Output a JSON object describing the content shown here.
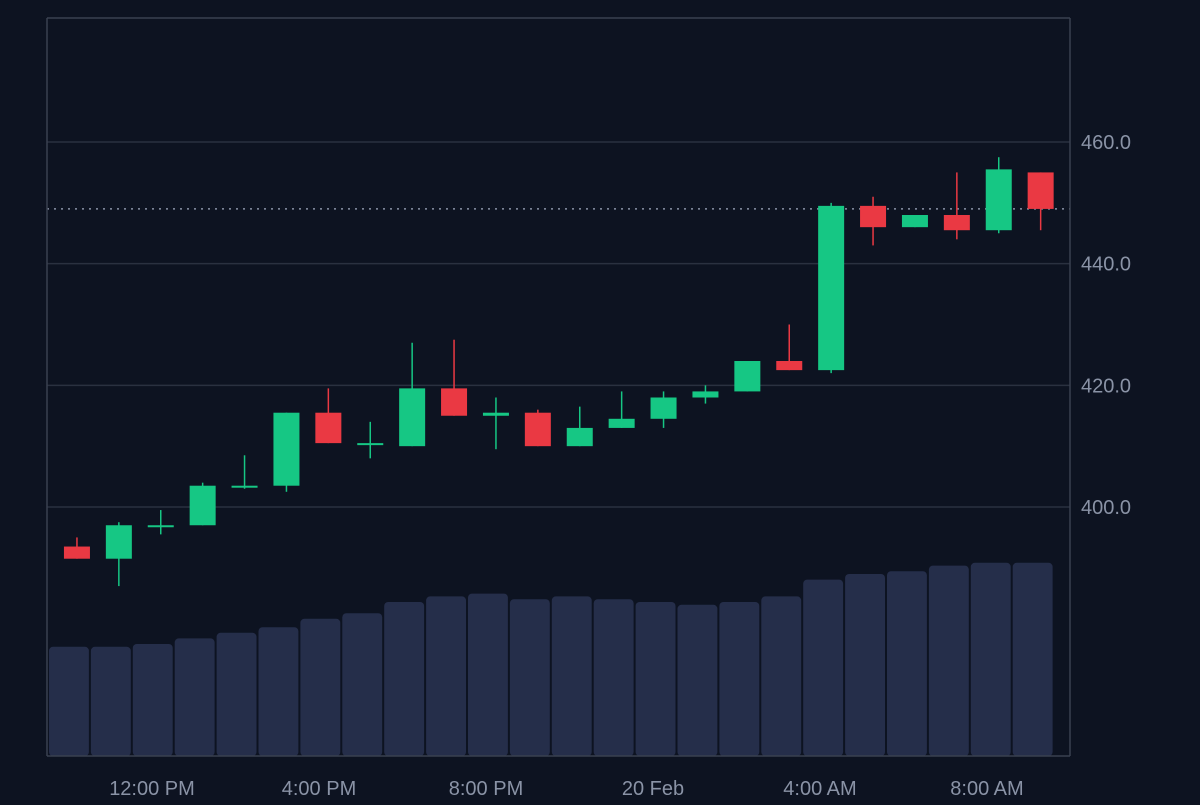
{
  "chart_data": {
    "type": "candlestick",
    "title": "",
    "xlabel": "",
    "ylabel": "",
    "y_axis": {
      "side": "right",
      "ticks": [
        "400.0",
        "420.0",
        "440.0",
        "460.0"
      ],
      "range": [
        380,
        480
      ]
    },
    "x_axis": {
      "ticks": [
        "12:00 PM",
        "4:00 PM",
        "8:00 PM",
        "20 Feb",
        "4:00 AM",
        "8:00 AM"
      ]
    },
    "grid": true,
    "last_price_line": 449,
    "colors": {
      "background": "#0d1321",
      "up": "#16c784",
      "down": "#ea3943",
      "grid": "#2a3140",
      "axis": "#3a4150",
      "tick_text": "#8a93a6",
      "volume": "#252e4a",
      "price_line": "#8a93a6"
    },
    "candles": [
      {
        "open": 393.5,
        "high": 395,
        "low": 391.5,
        "close": 391.5
      },
      {
        "open": 391.5,
        "high": 397.5,
        "low": 387,
        "close": 397
      },
      {
        "open": 397,
        "high": 399.5,
        "low": 395.5,
        "close": 397
      },
      {
        "open": 397,
        "high": 404,
        "low": 397,
        "close": 403.5
      },
      {
        "open": 403.5,
        "high": 408.5,
        "low": 403,
        "close": 403.5
      },
      {
        "open": 403.5,
        "high": 415.5,
        "low": 402.5,
        "close": 415.5
      },
      {
        "open": 415.5,
        "high": 419.5,
        "low": 410.5,
        "close": 410.5
      },
      {
        "open": 410.5,
        "high": 414,
        "low": 408,
        "close": 410.5
      },
      {
        "open": 410,
        "high": 427,
        "low": 410,
        "close": 419.5
      },
      {
        "open": 419.5,
        "high": 427.5,
        "low": 415,
        "close": 415
      },
      {
        "open": 415,
        "high": 418,
        "low": 409.5,
        "close": 415.5
      },
      {
        "open": 415.5,
        "high": 416,
        "low": 410,
        "close": 410
      },
      {
        "open": 410,
        "high": 416.5,
        "low": 410,
        "close": 413
      },
      {
        "open": 413,
        "high": 419,
        "low": 413,
        "close": 414.5
      },
      {
        "open": 414.5,
        "high": 419,
        "low": 413,
        "close": 418
      },
      {
        "open": 418,
        "high": 420,
        "low": 417,
        "close": 419
      },
      {
        "open": 419,
        "high": 424,
        "low": 419,
        "close": 424
      },
      {
        "open": 424,
        "high": 430,
        "low": 422.5,
        "close": 422.5
      },
      {
        "open": 422.5,
        "high": 450,
        "low": 422,
        "close": 449.5
      },
      {
        "open": 449.5,
        "high": 451,
        "low": 443,
        "close": 446
      },
      {
        "open": 446,
        "high": 448,
        "low": 446,
        "close": 448
      },
      {
        "open": 448,
        "high": 455,
        "low": 444,
        "close": 445.5
      },
      {
        "open": 445.5,
        "high": 457.5,
        "low": 445,
        "close": 455.5
      },
      {
        "open": 455,
        "high": 455,
        "low": 445.5,
        "close": 449
      }
    ],
    "volume": [
      0.39,
      0.39,
      0.4,
      0.42,
      0.44,
      0.46,
      0.49,
      0.51,
      0.55,
      0.57,
      0.58,
      0.56,
      0.57,
      0.56,
      0.55,
      0.54,
      0.55,
      0.57,
      0.63,
      0.65,
      0.66,
      0.68,
      0.69,
      0.69
    ]
  }
}
